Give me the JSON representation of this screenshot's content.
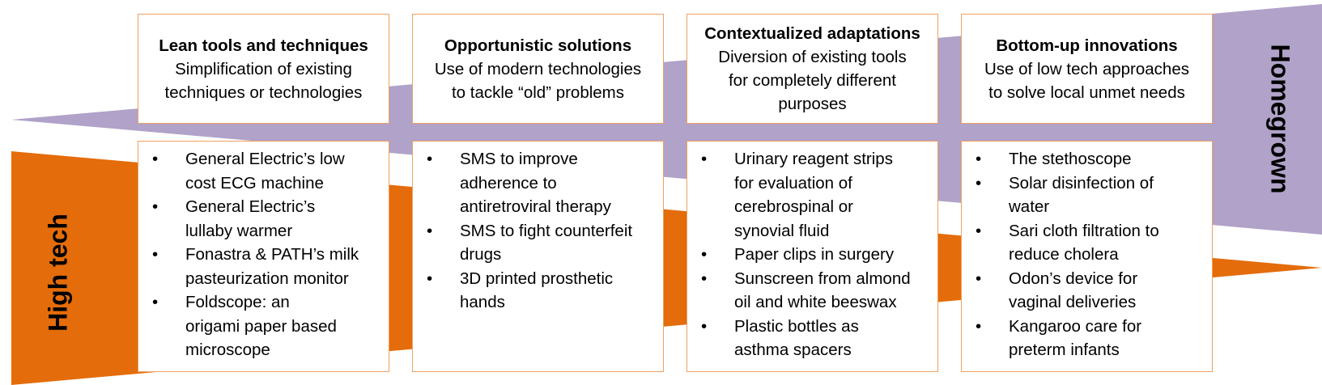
{
  "axes": {
    "homegrown": "Homegrown",
    "high_tech": "High tech"
  },
  "colors": {
    "homegrown_band": "#b0a2c8",
    "high_tech_band": "#e46c0a",
    "box_border": "#f0a060"
  },
  "categories": [
    {
      "title": "Lean tools and techniques",
      "description": "Simplification of existing\ntechniques or technologies",
      "examples": [
        "General Electric’s low\ncost ECG machine",
        "General Electric’s\nlullaby warmer",
        "Fonastra & PATH’s milk\npasteurization monitor",
        "Foldscope: an\norigami paper based\nmicroscope"
      ]
    },
    {
      "title": "Opportunistic solutions",
      "description": "Use of modern technologies\nto tackle “old” problems",
      "examples": [
        "SMS to improve\nadherence to\nantiretroviral therapy",
        "SMS to fight counterfeit\ndrugs",
        "3D printed prosthetic\nhands"
      ]
    },
    {
      "title": "Contextualized adaptations",
      "description": "Diversion of existing tools\nfor completely different\npurposes",
      "examples": [
        "Urinary reagent strips\nfor evaluation of\ncerebrospinal or\nsynovial fluid",
        "Paper clips in surgery",
        "Sunscreen from almond\noil and white beeswax",
        "Plastic bottles as\nasthma spacers"
      ]
    },
    {
      "title": "Bottom-up innovations",
      "description": "Use of low tech approaches\nto solve local unmet needs",
      "examples": [
        "The stethoscope",
        "Solar disinfection of\nwater",
        "Sari cloth filtration to\nreduce cholera",
        "Odon’s device for\nvaginal deliveries",
        "Kangaroo care for\npreterm infants"
      ]
    }
  ]
}
